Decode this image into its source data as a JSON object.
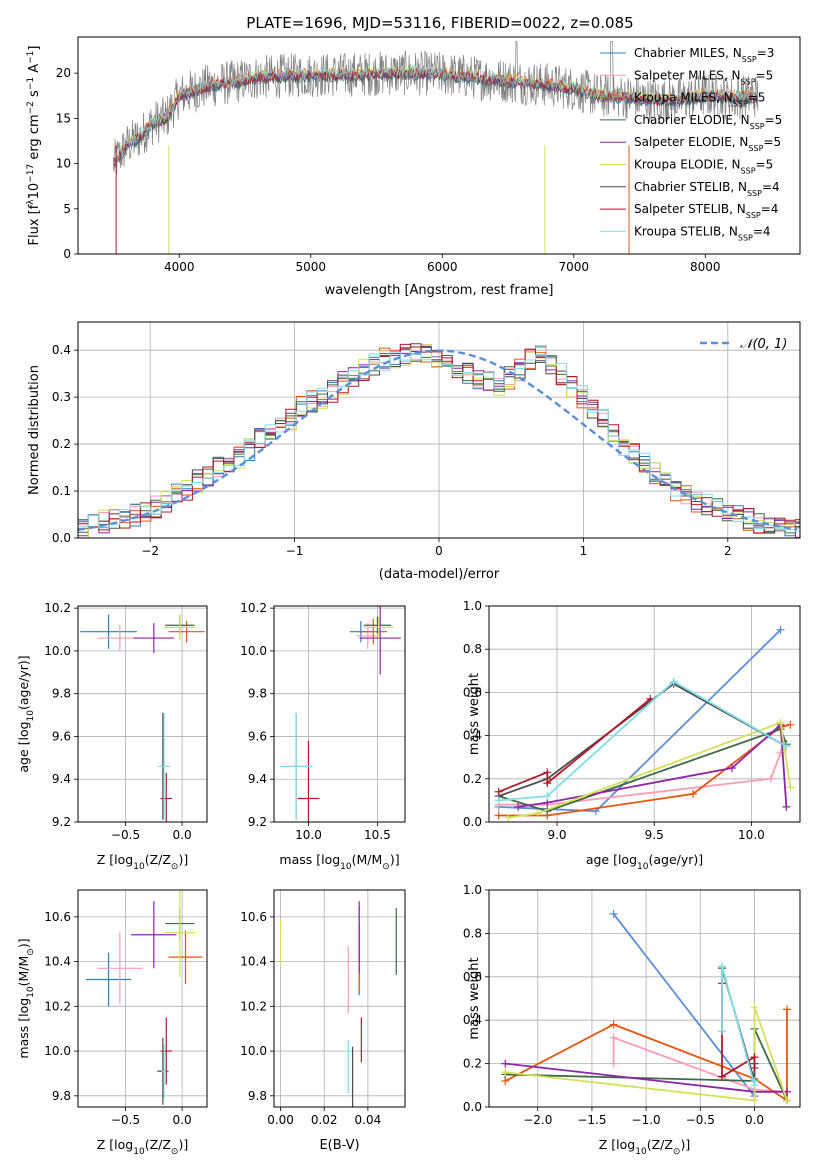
{
  "figure_title": "PLATE=1696, MJD=53116, FIBERID=0022, z=0.085",
  "colors": {
    "Chabrier MILES": "#2c7fb8",
    "Salpeter MILES": "#fa9fb5",
    "Kroupa MILES": "#e6550d",
    "Chabrier ELODIE": "#3d6b45",
    "Salpeter ELODIE": "#8e24aa",
    "Kroupa ELODIE": "#d4e157",
    "Chabrier STELIB": "#4d4d4d",
    "Salpeter STELIB": "#b2182b",
    "Kroupa STELIB": "#80deea",
    "data_spectrum": "#808080",
    "normal_curve": "#5b8fd9",
    "mw_chabrier_miles": "#5b8fd9",
    "mw_kroupa_miles": "#e87722"
  },
  "chart_data": [
    {
      "id": "spectrum",
      "type": "line",
      "title": "PLATE=1696, MJD=53116, FIBERID=0022, z=0.085",
      "xlabel": "wavelength [Angstrom, rest frame]",
      "ylabel_parts": [
        "Flux [f",
        "λ",
        "10",
        "−17",
        " erg cm",
        "−2",
        " s",
        "−1",
        " A",
        "−1",
        "]"
      ],
      "xlim": [
        3230,
        8720
      ],
      "ylim": [
        0,
        24
      ],
      "xticks": [
        4000,
        5000,
        6000,
        7000,
        8000
      ],
      "yticks": [
        0,
        5,
        10,
        15,
        20
      ],
      "grid": false,
      "legend_position": "top-right",
      "legend": [
        {
          "base": "Chabrier MILES, N",
          "sub": "SSP",
          "tail": "=3"
        },
        {
          "base": "Salpeter MILES, N",
          "sub": "SSP",
          "tail": "=5"
        },
        {
          "base": "Kroupa MILES, N",
          "sub": "SSP",
          "tail": "=5"
        },
        {
          "base": "Chabrier ELODIE, N",
          "sub": "SSP",
          "tail": "=5"
        },
        {
          "base": "Salpeter ELODIE, N",
          "sub": "SSP",
          "tail": "=5"
        },
        {
          "base": "Kroupa ELODIE, N",
          "sub": "SSP",
          "tail": "=5"
        },
        {
          "base": "Chabrier STELIB, N",
          "sub": "SSP",
          "tail": "=4"
        },
        {
          "base": "Salpeter STELIB, N",
          "sub": "SSP",
          "tail": "=4"
        },
        {
          "base": "Kroupa STELIB, N",
          "sub": "SSP",
          "tail": "=4"
        }
      ],
      "continuum": {
        "x": [
          3500,
          3600,
          3700,
          3800,
          3900,
          4000,
          4200,
          4400,
          4600,
          4800,
          5000,
          5200,
          5400,
          5600,
          5800,
          6000,
          6200,
          6400,
          6600,
          6800,
          7000,
          7200,
          7400,
          7600,
          7800,
          8000,
          8200,
          8400
        ],
        "y": [
          10,
          12,
          13,
          14.5,
          15,
          17.5,
          18.5,
          19,
          19.5,
          19.7,
          19.8,
          19.8,
          19.9,
          20,
          20,
          19.9,
          19.6,
          19.3,
          19,
          18.7,
          18.3,
          17.5,
          17.4,
          17,
          17,
          17.6,
          17.3,
          17.5
        ]
      },
      "noise_amplitude": 2.5
    },
    {
      "id": "residual_hist",
      "type": "line",
      "subtype": "step-histogram",
      "xlabel": "(data-model)/error",
      "ylabel": "Normed distribution",
      "xlim": [
        -2.5,
        2.5
      ],
      "ylim": [
        0,
        0.46
      ],
      "xticks": [
        -2,
        -1,
        0,
        1,
        2
      ],
      "xticklabels": [
        "−2",
        "−1",
        "0",
        "1",
        "2"
      ],
      "yticks": [
        0,
        0.1,
        0.2,
        0.3,
        0.4
      ],
      "yticklabels": [
        "0.0",
        "0.1",
        "0.2",
        "0.3",
        "0.4"
      ],
      "grid": true,
      "legend_position": "top-right",
      "legend": [
        "𝒩(0, 1)"
      ],
      "bin_width": 0.1,
      "bin_start": -2.5,
      "values": [
        0.02,
        0.025,
        0.035,
        0.04,
        0.045,
        0.05,
        0.06,
        0.065,
        0.08,
        0.09,
        0.1,
        0.12,
        0.13,
        0.15,
        0.16,
        0.17,
        0.19,
        0.21,
        0.23,
        0.24,
        0.25,
        0.28,
        0.29,
        0.3,
        0.31,
        0.33,
        0.34,
        0.36,
        0.37,
        0.38,
        0.385,
        0.39,
        0.4,
        0.39,
        0.38,
        0.37,
        0.36,
        0.35,
        0.34,
        0.33,
        0.32,
        0.34,
        0.36,
        0.38,
        0.39,
        0.37,
        0.35,
        0.32,
        0.3,
        0.27,
        0.25,
        0.22,
        0.2,
        0.18,
        0.16,
        0.14,
        0.12,
        0.1,
        0.09,
        0.08,
        0.07,
        0.06,
        0.05,
        0.045,
        0.04,
        0.035,
        0.03,
        0.028,
        0.025,
        0.02
      ],
      "spread": 0.025
    },
    {
      "id": "age_vs_Z",
      "type": "scatter",
      "subtype": "errorbar",
      "xlabel_parts": [
        "Z [log",
        "10",
        "(Z/Z",
        "⊙",
        ")]"
      ],
      "ylabel_parts": [
        "age  [log",
        "10",
        "(age/yr)]"
      ],
      "xlim": [
        -0.92,
        0.22
      ],
      "ylim": [
        9.2,
        10.21
      ],
      "xticks": [
        -0.5,
        0.0
      ],
      "xticklabels": [
        "−0.5",
        "0.0"
      ],
      "yticks": [
        9.2,
        9.4,
        9.6,
        9.8,
        10.0,
        10.2
      ],
      "yticklabels": [
        "9.2",
        "9.4",
        "9.6",
        "9.8",
        "10.0",
        "10.2"
      ],
      "grid": true,
      "points": [
        {
          "model": "Chabrier MILES",
          "x": -0.65,
          "y": 10.09,
          "xerr": 0.25,
          "yerr": 0.08
        },
        {
          "model": "Salpeter MILES",
          "x": -0.55,
          "y": 10.06,
          "xerr": 0.2,
          "yerr": 0.06
        },
        {
          "model": "Kroupa MILES",
          "x": 0.04,
          "y": 10.09,
          "xerr": 0.16,
          "yerr": 0.05
        },
        {
          "model": "Chabrier ELODIE",
          "x": -0.02,
          "y": 10.12,
          "xerr": 0.13,
          "yerr": 0.05
        },
        {
          "model": "Salpeter ELODIE",
          "x": -0.25,
          "y": 10.06,
          "xerr": 0.18,
          "yerr": 0.07
        },
        {
          "model": "Kroupa ELODIE",
          "x": -0.02,
          "y": 10.11,
          "xerr": 0.14,
          "yerr": 0.06
        },
        {
          "model": "Chabrier STELIB",
          "x": -0.17,
          "y": 9.46,
          "xerr": 0.02,
          "yerr": 0.25
        },
        {
          "model": "Salpeter STELIB",
          "x": -0.14,
          "y": 9.31,
          "xerr": 0.05,
          "yerr": 0.12
        },
        {
          "model": "Kroupa STELIB",
          "x": -0.16,
          "y": 9.46,
          "xerr": 0.05,
          "yerr": 0.25
        }
      ]
    },
    {
      "id": "age_vs_mass",
      "type": "scatter",
      "subtype": "errorbar",
      "xlabel_parts": [
        "mass [log",
        "10",
        "(M/M",
        "⊙",
        ")]"
      ],
      "xlim": [
        9.75,
        10.7
      ],
      "ylim": [
        9.2,
        10.21
      ],
      "xticks": [
        10.0,
        10.5
      ],
      "xticklabels": [
        "10.0",
        "10.5"
      ],
      "yticks": [
        9.2,
        9.4,
        9.6,
        9.8,
        10.0,
        10.2
      ],
      "yticklabels": [
        "9.2",
        "9.4",
        "9.6",
        "9.8",
        "10.0",
        "10.2"
      ],
      "grid": true,
      "points": [
        {
          "model": "Chabrier MILES",
          "x": 10.38,
          "y": 10.09,
          "xerr": 0.08,
          "yerr": 0.05
        },
        {
          "model": "Salpeter MILES",
          "x": 10.43,
          "y": 10.07,
          "xerr": 0.08,
          "yerr": 0.06
        },
        {
          "model": "Kroupa MILES",
          "x": 10.47,
          "y": 10.09,
          "xerr": 0.1,
          "yerr": 0.06
        },
        {
          "model": "Chabrier ELODIE",
          "x": 10.5,
          "y": 10.12,
          "xerr": 0.1,
          "yerr": 0.04
        },
        {
          "model": "Salpeter ELODIE",
          "x": 10.52,
          "y": 10.06,
          "xerr": 0.15,
          "yerr": 0.17
        },
        {
          "model": "Kroupa ELODIE",
          "x": 10.51,
          "y": 10.11,
          "xerr": 0.11,
          "yerr": 0.05
        },
        {
          "model": "Chabrier STELIB",
          "x": 9.91,
          "y": 9.46,
          "xerr": 0.02,
          "yerr": 0.25
        },
        {
          "model": "Salpeter STELIB",
          "x": 10.0,
          "y": 9.31,
          "xerr": 0.08,
          "yerr": 0.27
        },
        {
          "model": "Kroupa STELIB",
          "x": 9.91,
          "y": 9.46,
          "xerr": 0.12,
          "yerr": 0.25
        }
      ]
    },
    {
      "id": "massweight_vs_age",
      "type": "line",
      "xlabel_parts": [
        "age  [log",
        "10",
        "(age/yr)]"
      ],
      "ylabel": "mass weight",
      "xlim": [
        8.65,
        10.25
      ],
      "ylim": [
        0,
        1.0
      ],
      "xticks": [
        9.0,
        9.5,
        10.0
      ],
      "xticklabels": [
        "9.0",
        "9.5",
        "10.0"
      ],
      "yticks": [
        0,
        0.2,
        0.4,
        0.6,
        0.8,
        1.0
      ],
      "yticklabels": [
        "0.0",
        "0.2",
        "0.4",
        "0.6",
        "0.8",
        "1.0"
      ],
      "grid": true,
      "series": [
        {
          "model": "Chabrier MILES",
          "color_key": "mw_chabrier_miles",
          "x": [
            8.7,
            9.2,
            10.15
          ],
          "y": [
            0.07,
            0.05,
            0.89
          ]
        },
        {
          "model": "Salpeter MILES",
          "x": [
            8.7,
            8.95,
            10.1,
            10.15
          ],
          "y": [
            0.08,
            0.08,
            0.2,
            0.32
          ]
        },
        {
          "model": "Kroupa MILES",
          "x": [
            8.7,
            8.95,
            9.7,
            10.15,
            10.2
          ],
          "y": [
            0.03,
            0.03,
            0.13,
            0.44,
            0.45
          ]
        },
        {
          "model": "Chabrier ELODIE",
          "x": [
            8.7,
            8.95,
            10.15,
            10.18
          ],
          "y": [
            0.12,
            0.05,
            0.43,
            0.36
          ]
        },
        {
          "model": "Salpeter ELODIE",
          "x": [
            8.8,
            8.95,
            9.9,
            10.15,
            10.18
          ],
          "y": [
            0.07,
            0.09,
            0.25,
            0.45,
            0.07
          ]
        },
        {
          "model": "Kroupa ELODIE",
          "x": [
            8.75,
            8.9,
            10.15,
            10.2
          ],
          "y": [
            0.02,
            0.04,
            0.46,
            0.16
          ]
        },
        {
          "model": "Chabrier STELIB",
          "x": [
            8.7,
            8.95,
            9.6,
            10.18
          ],
          "y": [
            0.12,
            0.2,
            0.64,
            0.35
          ]
        },
        {
          "model": "Salpeter STELIB",
          "x": [
            8.7,
            8.95,
            8.95,
            9.48
          ],
          "y": [
            0.14,
            0.23,
            0.18,
            0.57
          ]
        },
        {
          "model": "Kroupa STELIB",
          "x": [
            8.7,
            8.95,
            9.6,
            10.18
          ],
          "y": [
            0.1,
            0.12,
            0.65,
            0.35
          ]
        }
      ]
    },
    {
      "id": "mass_vs_Z",
      "type": "scatter",
      "subtype": "errorbar",
      "xlabel_parts": [
        "Z [log",
        "10",
        "(Z/Z",
        "⊙",
        ")]"
      ],
      "ylabel_parts": [
        "mass [log",
        "10",
        "(M/M",
        "⊙",
        ")]"
      ],
      "xlim": [
        -0.92,
        0.22
      ],
      "ylim": [
        9.75,
        10.72
      ],
      "xticks": [
        -0.5,
        0.0
      ],
      "xticklabels": [
        "−0.5",
        "0.0"
      ],
      "yticks": [
        9.8,
        10.0,
        10.2,
        10.4,
        10.6
      ],
      "yticklabels": [
        "9.8",
        "10.0",
        "10.2",
        "10.4",
        "10.6"
      ],
      "grid": true,
      "points": [
        {
          "model": "Chabrier MILES",
          "x": -0.65,
          "y": 10.32,
          "xerr": 0.2,
          "yerr": 0.12
        },
        {
          "model": "Salpeter MILES",
          "x": -0.55,
          "y": 10.37,
          "xerr": 0.2,
          "yerr": 0.16
        },
        {
          "model": "Kroupa MILES",
          "x": 0.03,
          "y": 10.42,
          "xerr": 0.15,
          "yerr": 0.12
        },
        {
          "model": "Chabrier ELODIE",
          "x": -0.02,
          "y": 10.57,
          "xerr": 0.13,
          "yerr": 0.07
        },
        {
          "model": "Salpeter ELODIE",
          "x": -0.25,
          "y": 10.52,
          "xerr": 0.2,
          "yerr": 0.15
        },
        {
          "model": "Kroupa ELODIE",
          "x": -0.02,
          "y": 10.53,
          "xerr": 0.14,
          "yerr": 0.2
        },
        {
          "model": "Chabrier STELIB",
          "x": -0.17,
          "y": 9.91,
          "xerr": 0.05,
          "yerr": 0.15
        },
        {
          "model": "Salpeter STELIB",
          "x": -0.14,
          "y": 10.0,
          "xerr": 0.05,
          "yerr": 0.15
        },
        {
          "model": "Kroupa STELIB",
          "x": -0.16,
          "y": 9.91,
          "xerr": 0.02,
          "yerr": 0.12
        }
      ]
    },
    {
      "id": "mass_vs_EBV",
      "type": "scatter",
      "subtype": "errorbar",
      "xlabel": "E(B-V)",
      "xlim": [
        -0.003,
        0.057
      ],
      "ylim": [
        9.75,
        10.72
      ],
      "xticks": [
        0.0,
        0.02,
        0.04
      ],
      "xticklabels": [
        "0.00",
        "0.02",
        "0.04"
      ],
      "yticks": [
        9.8,
        10.0,
        10.2,
        10.4,
        10.6
      ],
      "yticklabels": [
        "9.8",
        "10.0",
        "10.2",
        "10.4",
        "10.6"
      ],
      "grid": true,
      "points": [
        {
          "model": "Chabrier MILES",
          "x": 0.036,
          "y": 10.45,
          "xerr": 0.0,
          "yerr": 0.2
        },
        {
          "model": "Salpeter MILES",
          "x": 0.031,
          "y": 10.32,
          "xerr": 0.0,
          "yerr": 0.15
        },
        {
          "model": "Kroupa MILES",
          "x": 0.036,
          "y": 10.42,
          "xerr": 0.0,
          "yerr": 0.15
        },
        {
          "model": "Chabrier ELODIE",
          "x": 0.053,
          "y": 10.49,
          "xerr": 0.0,
          "yerr": 0.15
        },
        {
          "model": "Salpeter ELODIE",
          "x": 0.036,
          "y": 10.51,
          "xerr": 0.0,
          "yerr": 0.16
        },
        {
          "model": "Kroupa ELODIE",
          "x": 0.0,
          "y": 10.49,
          "xerr": 0.0,
          "yerr": 0.1
        },
        {
          "model": "Chabrier STELIB",
          "x": 0.033,
          "y": 9.88,
          "xerr": 0.0,
          "yerr": 0.14
        },
        {
          "model": "Salpeter STELIB",
          "x": 0.037,
          "y": 10.05,
          "xerr": 0.0,
          "yerr": 0.1
        },
        {
          "model": "Kroupa STELIB",
          "x": 0.031,
          "y": 9.93,
          "xerr": 0.0,
          "yerr": 0.12
        }
      ]
    },
    {
      "id": "massweight_vs_Z",
      "type": "line",
      "xlabel_parts": [
        "Z [log",
        "10",
        "(Z/Z",
        "⊙",
        ")]"
      ],
      "ylabel": "mass weight",
      "xlim": [
        -2.45,
        0.42
      ],
      "ylim": [
        0,
        1.0
      ],
      "xticks": [
        -2.0,
        -1.5,
        -1.0,
        -0.5,
        0.0
      ],
      "xticklabels": [
        "−2.0",
        "−1.5",
        "−1.0",
        "−0.5",
        "0.0"
      ],
      "yticks": [
        0,
        0.2,
        0.4,
        0.6,
        0.8,
        1.0
      ],
      "yticklabels": [
        "0.0",
        "0.2",
        "0.4",
        "0.6",
        "0.8",
        "1.0"
      ],
      "grid": true,
      "series": [
        {
          "model": "Chabrier MILES",
          "color_key": "mw_chabrier_miles",
          "x": [
            -1.3,
            0.0,
            0.0
          ],
          "y": [
            0.89,
            0.05,
            0.07
          ]
        },
        {
          "model": "Salpeter MILES",
          "x": [
            -1.3,
            -1.3,
            0.0,
            0.3
          ],
          "y": [
            0.2,
            0.32,
            0.08,
            0.07
          ]
        },
        {
          "model": "Kroupa MILES",
          "x": [
            -2.3,
            -1.3,
            0.0,
            0.3,
            0.3
          ],
          "y": [
            0.12,
            0.38,
            0.13,
            0.03,
            0.45
          ]
        },
        {
          "model": "Chabrier ELODIE",
          "x": [
            -2.3,
            0.0,
            0.0,
            0.3
          ],
          "y": [
            0.15,
            0.12,
            0.36,
            0.03
          ]
        },
        {
          "model": "Salpeter ELODIE",
          "x": [
            -2.3,
            0.0,
            0.3
          ],
          "y": [
            0.2,
            0.07,
            0.07
          ]
        },
        {
          "model": "Kroupa ELODIE",
          "x": [
            -2.3,
            0.0,
            0.0,
            0.3
          ],
          "y": [
            0.16,
            0.03,
            0.46,
            0.03
          ]
        },
        {
          "model": "Chabrier STELIB",
          "x": [
            -0.3,
            -0.3,
            0.0,
            0.0
          ],
          "y": [
            0.35,
            0.64,
            0.12,
            0.2
          ]
        },
        {
          "model": "Salpeter STELIB",
          "x": [
            -0.3,
            -0.3,
            0.0,
            0.0
          ],
          "y": [
            0.57,
            0.14,
            0.23,
            0.18
          ]
        },
        {
          "model": "Kroupa STELIB",
          "x": [
            -0.3,
            -0.3,
            0.0,
            0.0
          ],
          "y": [
            0.35,
            0.65,
            0.1,
            0.12
          ]
        }
      ]
    }
  ]
}
